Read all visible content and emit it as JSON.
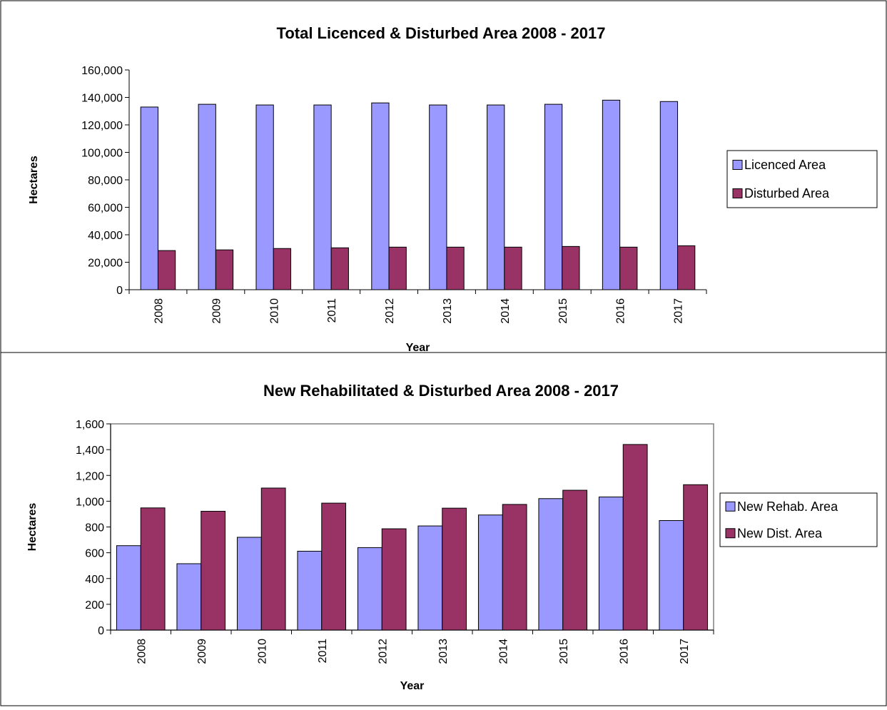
{
  "chart_data": [
    {
      "type": "bar",
      "title": "Total Licenced & Disturbed Area 2008 - 2017",
      "xlabel": "Year",
      "ylabel": "Hectares",
      "ylim": [
        0,
        160000
      ],
      "yticks": [
        "0",
        "20,000",
        "40,000",
        "60,000",
        "80,000",
        "100,000",
        "120,000",
        "140,000",
        "160,000"
      ],
      "grid": false,
      "legend_position": "right",
      "categories": [
        "2008",
        "2009",
        "2010",
        "2011",
        "2012",
        "2013",
        "2014",
        "2015",
        "2016",
        "2017"
      ],
      "series": [
        {
          "name": "Licenced Area",
          "color": "#9999ff",
          "values": [
            133000,
            135000,
            134500,
            134500,
            136000,
            134500,
            134500,
            135000,
            138000,
            137000
          ]
        },
        {
          "name": "Disturbed Area",
          "color": "#993366",
          "values": [
            28500,
            29000,
            30000,
            30500,
            31000,
            31000,
            31000,
            31500,
            31000,
            32000
          ]
        }
      ]
    },
    {
      "type": "bar",
      "title": "New Rehabilitated & Disturbed Area 2008 - 2017",
      "xlabel": "Year",
      "ylabel": "Hectares",
      "ylim": [
        0,
        1600
      ],
      "yticks": [
        "0",
        "200",
        "400",
        "600",
        "800",
        "1,000",
        "1,200",
        "1,400",
        "1,600"
      ],
      "grid": false,
      "legend_position": "right",
      "categories": [
        "2008",
        "2009",
        "2010",
        "2011",
        "2012",
        "2013",
        "2014",
        "2015",
        "2016",
        "2017"
      ],
      "series": [
        {
          "name": "New Rehab. Area",
          "color": "#9999ff",
          "values": [
            655,
            515,
            720,
            612,
            640,
            808,
            893,
            1020,
            1033,
            850
          ]
        },
        {
          "name": "New Dist. Area",
          "color": "#993366",
          "values": [
            948,
            922,
            1102,
            985,
            786,
            946,
            975,
            1085,
            1440,
            1128
          ]
        }
      ]
    }
  ]
}
